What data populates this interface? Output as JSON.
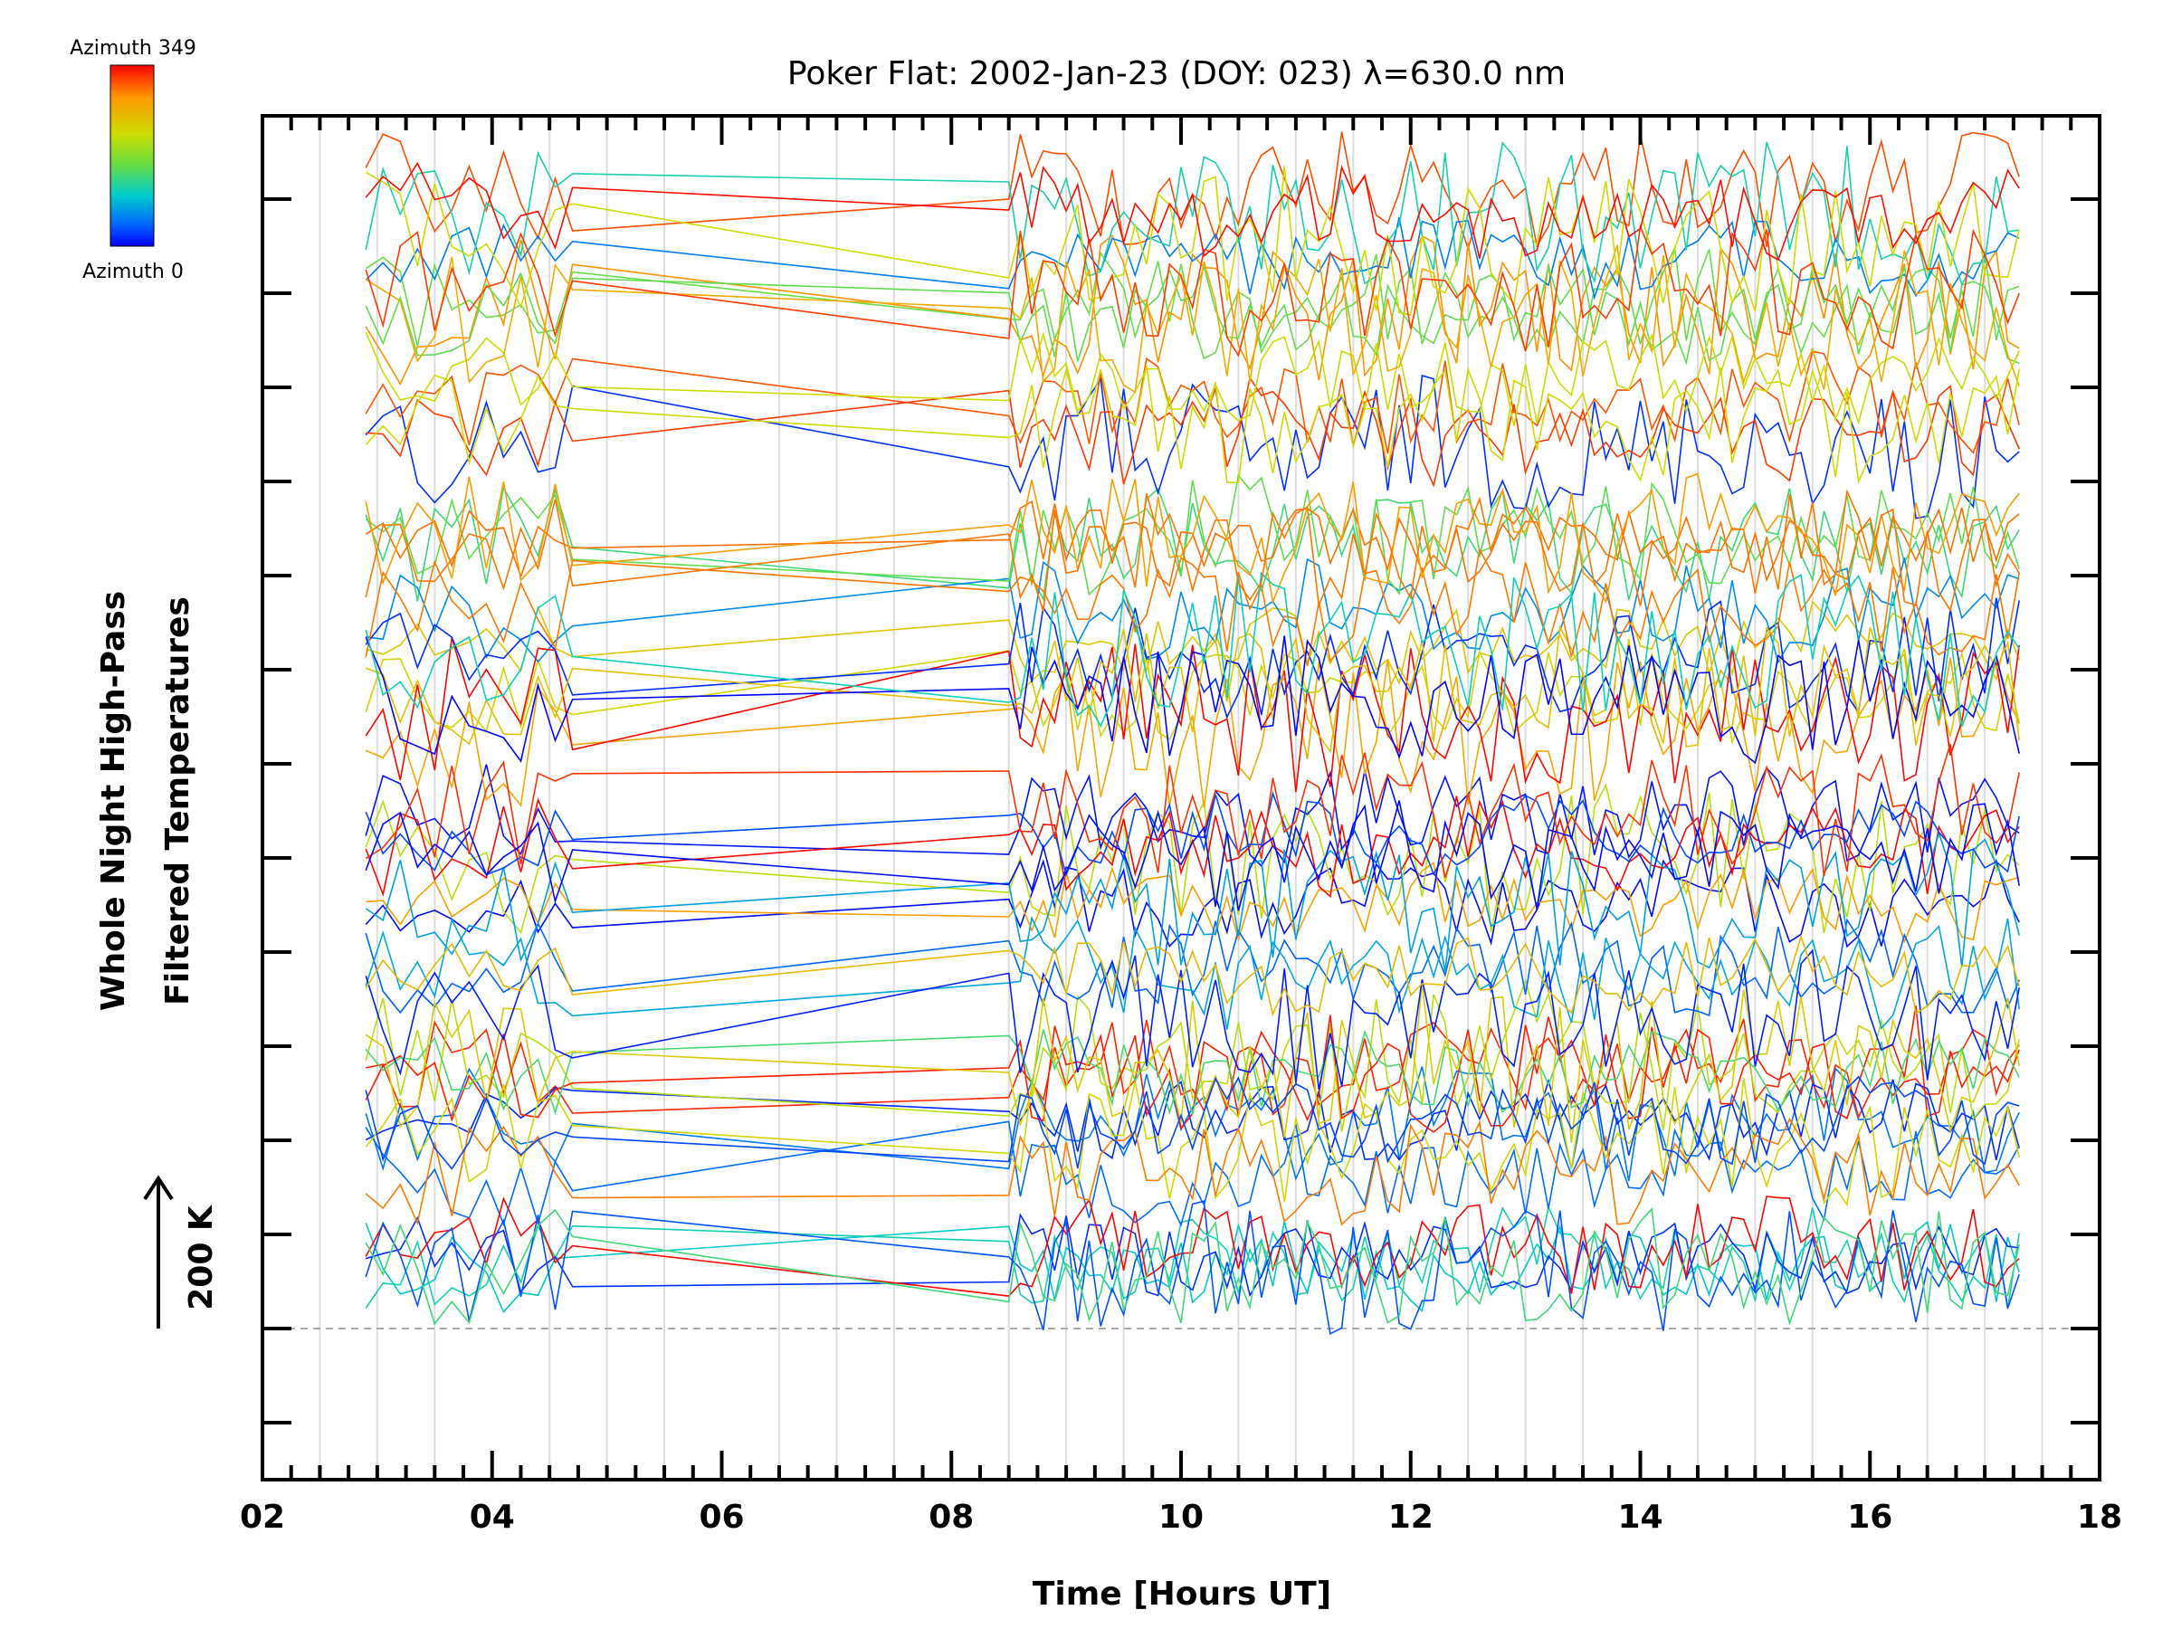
{
  "chart_data": {
    "type": "line",
    "title": "Poker Flat: 2002-Jan-23 (DOY: 023) λ=630.0 nm",
    "xlabel": "Time [Hours UT]",
    "ylabel_line1": "Whole Night High-Pass",
    "ylabel_line2": "Filtered Temperatures",
    "scale_label": "200 K",
    "xlim": [
      2,
      18
    ],
    "x_ticks": [
      "02",
      "04",
      "06",
      "08",
      "10",
      "12",
      "14",
      "16",
      "18"
    ],
    "x_tick_values": [
      2,
      4,
      6,
      8,
      10,
      12,
      14,
      16,
      18
    ],
    "colorbar": {
      "top_label": "Azimuth 349",
      "bottom_label": "Azimuth 0",
      "colors": [
        "#ff0000",
        "#ff9900",
        "#ccdd00",
        "#66dd44",
        "#00cccc",
        "#0066ff",
        "#0000ff"
      ]
    },
    "grid": true,
    "n_series": 60,
    "time_start": 2.9,
    "time_end": 17.3,
    "gap_start": 4.7,
    "gap_end": 8.5,
    "sample_step": 0.1
  }
}
